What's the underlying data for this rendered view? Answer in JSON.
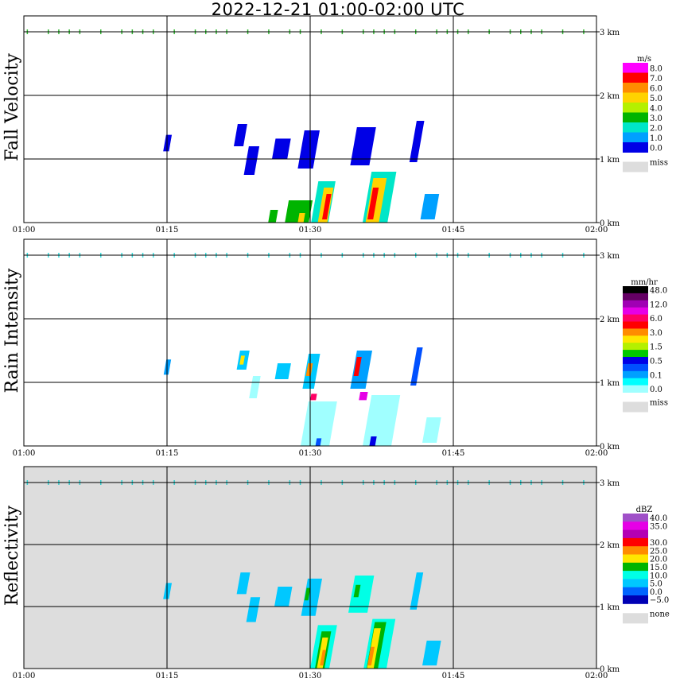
{
  "title": "2022-12-21   01:00-02:00 UTC",
  "chart_data": [
    {
      "type": "heatmap",
      "ylabel": "Fall Velocity",
      "x_ticks": [
        "01:00",
        "01:15",
        "01:30",
        "01:45",
        "02:00"
      ],
      "y_ticks": [
        "0 km",
        "1 km",
        "2 km",
        "3 km"
      ],
      "xlim": [
        0,
        60
      ],
      "ylim": [
        0,
        3
      ],
      "grid": true,
      "legend": {
        "placement": "right",
        "unit": "m/s",
        "levels": [
          {
            "label": "8.0",
            "color": "#ff00ff"
          },
          {
            "label": "7.0",
            "color": "#ff0000"
          },
          {
            "label": "6.0",
            "color": "#ff8c00"
          },
          {
            "label": "5.0",
            "color": "#ffd200"
          },
          {
            "label": "4.0",
            "color": "#b4f000"
          },
          {
            "label": "3.0",
            "color": "#00b400"
          },
          {
            "label": "2.0",
            "color": "#00e6c8"
          },
          {
            "label": "1.0",
            "color": "#00a0ff"
          },
          {
            "label": "0.0",
            "color": "#0000e6"
          }
        ],
        "miss_label": "miss",
        "miss_color": "#dddddd"
      },
      "background": "#ffffff",
      "echoes": [
        {
          "t": 14.9,
          "z0": 1.12,
          "z1": 1.38,
          "w": 0.6,
          "color": "#0000e6"
        },
        {
          "t": 22.5,
          "z0": 1.2,
          "z1": 1.55,
          "w": 1.0,
          "color": "#0000e6"
        },
        {
          "t": 23.6,
          "z0": 0.75,
          "z1": 1.2,
          "w": 1.1,
          "color": "#0000e6"
        },
        {
          "t": 26.8,
          "z0": 1.0,
          "z1": 1.32,
          "w": 1.6,
          "color": "#0000e6"
        },
        {
          "t": 29.5,
          "z0": 0.85,
          "z1": 1.45,
          "w": 1.6,
          "color": "#0000e6"
        },
        {
          "t": 35.2,
          "z0": 0.9,
          "z1": 1.5,
          "w": 2.0,
          "color": "#0000e6"
        },
        {
          "t": 40.8,
          "z0": 0.95,
          "z1": 1.6,
          "w": 0.8,
          "color": "#0000e6"
        },
        {
          "t": 42.3,
          "z0": 0.05,
          "z1": 0.45,
          "w": 1.5,
          "color": "#00a0ff"
        },
        {
          "t": 31.0,
          "z0": 0.0,
          "z1": 0.65,
          "w": 1.8,
          "color": "#00e6c8"
        },
        {
          "t": 36.8,
          "z0": 0.0,
          "z1": 0.8,
          "w": 2.6,
          "color": "#00e6c8"
        },
        {
          "t": 28.6,
          "z0": 0.0,
          "z1": 0.35,
          "w": 2.5,
          "color": "#00b400"
        },
        {
          "t": 26.0,
          "z0": 0.0,
          "z1": 0.2,
          "w": 0.8,
          "color": "#00b400"
        },
        {
          "t": 31.3,
          "z0": 0.0,
          "z1": 0.55,
          "w": 1.0,
          "color": "#ffd200"
        },
        {
          "t": 36.5,
          "z0": 0.0,
          "z1": 0.7,
          "w": 1.4,
          "color": "#ffd200"
        },
        {
          "t": 31.5,
          "z0": 0.05,
          "z1": 0.45,
          "w": 0.5,
          "color": "#ff0000"
        },
        {
          "t": 36.3,
          "z0": 0.05,
          "z1": 0.55,
          "w": 0.6,
          "color": "#ff0000"
        },
        {
          "t": 29.0,
          "z0": 0.0,
          "z1": 0.15,
          "w": 0.6,
          "color": "#ffd200"
        }
      ],
      "clutter_top": {
        "z": 3.0,
        "color": "#33bb33"
      }
    },
    {
      "type": "heatmap",
      "ylabel": "Rain Intensity",
      "x_ticks": [
        "01:00",
        "01:15",
        "01:30",
        "01:45",
        "02:00"
      ],
      "y_ticks": [
        "0 km",
        "1 km",
        "2 km",
        "3 km"
      ],
      "xlim": [
        0,
        60
      ],
      "ylim": [
        0,
        3
      ],
      "grid": true,
      "legend": {
        "placement": "right",
        "unit": "mm/hr",
        "levels": [
          {
            "label": "48.0",
            "color": "#000000"
          },
          {
            "label": "",
            "color": "#640064"
          },
          {
            "label": "12.0",
            "color": "#a000b4"
          },
          {
            "label": "",
            "color": "#e600e6"
          },
          {
            "label": "6.0",
            "color": "#ff0064"
          },
          {
            "label": "",
            "color": "#ff0000"
          },
          {
            "label": "3.0",
            "color": "#ff8c00"
          },
          {
            "label": "",
            "color": "#ffe600"
          },
          {
            "label": "1.5",
            "color": "#b4f000"
          },
          {
            "label": "",
            "color": "#00c800"
          },
          {
            "label": "0.5",
            "color": "#0000e6"
          },
          {
            "label": "",
            "color": "#0050ff"
          },
          {
            "label": "0.1",
            "color": "#00a0ff"
          },
          {
            "label": "",
            "color": "#00ffff"
          },
          {
            "label": "0.0",
            "color": "#a0ffff"
          }
        ],
        "miss_label": "miss",
        "miss_color": "#dddddd"
      },
      "background": "#ffffff",
      "echoes": [
        {
          "t": 14.9,
          "z0": 1.12,
          "z1": 1.36,
          "w": 0.5,
          "color": "#00a0ff"
        },
        {
          "t": 22.8,
          "z0": 1.2,
          "z1": 1.5,
          "w": 1.0,
          "color": "#00c8ff"
        },
        {
          "t": 24.0,
          "z0": 0.75,
          "z1": 1.1,
          "w": 0.8,
          "color": "#a0ffff"
        },
        {
          "t": 27.0,
          "z0": 1.05,
          "z1": 1.3,
          "w": 1.4,
          "color": "#00c8ff"
        },
        {
          "t": 29.8,
          "z0": 0.9,
          "z1": 1.45,
          "w": 1.2,
          "color": "#00c8ff"
        },
        {
          "t": 35.0,
          "z0": 0.9,
          "z1": 1.5,
          "w": 1.6,
          "color": "#00a0ff"
        },
        {
          "t": 40.8,
          "z0": 0.95,
          "z1": 1.55,
          "w": 0.6,
          "color": "#0050ff"
        },
        {
          "t": 30.5,
          "z0": 0.0,
          "z1": 0.7,
          "w": 3.0,
          "color": "#a0ffff"
        },
        {
          "t": 37.0,
          "z0": 0.0,
          "z1": 0.8,
          "w": 3.0,
          "color": "#a0ffff"
        },
        {
          "t": 42.5,
          "z0": 0.05,
          "z1": 0.45,
          "w": 1.5,
          "color": "#a0ffff"
        },
        {
          "t": 22.8,
          "z0": 1.28,
          "z1": 1.42,
          "w": 0.4,
          "color": "#ffe600"
        },
        {
          "t": 29.8,
          "z0": 1.1,
          "z1": 1.3,
          "w": 0.5,
          "color": "#ff8c00"
        },
        {
          "t": 34.8,
          "z0": 1.1,
          "z1": 1.4,
          "w": 0.5,
          "color": "#ff0000"
        },
        {
          "t": 30.3,
          "z0": 0.72,
          "z1": 0.82,
          "w": 0.6,
          "color": "#ff0064"
        },
        {
          "t": 35.5,
          "z0": 0.72,
          "z1": 0.85,
          "w": 0.8,
          "color": "#e600e6"
        },
        {
          "t": 36.5,
          "z0": 0.0,
          "z1": 0.15,
          "w": 0.6,
          "color": "#0000e6"
        },
        {
          "t": 30.8,
          "z0": 0.0,
          "z1": 0.12,
          "w": 0.5,
          "color": "#0050ff"
        }
      ],
      "clutter_top": {
        "z": 3.0,
        "color": "#33dddd"
      }
    },
    {
      "type": "heatmap",
      "ylabel": "Reflectivity",
      "x_ticks": [
        "01:00",
        "01:15",
        "01:30",
        "01:45",
        "02:00"
      ],
      "y_ticks": [
        "0 km",
        "1 km",
        "2 km",
        "3 km"
      ],
      "xlim": [
        0,
        60
      ],
      "ylim": [
        0,
        3
      ],
      "grid": true,
      "legend": {
        "placement": "right",
        "unit": "dBZ",
        "levels": [
          {
            "label": "40.0",
            "color": "#a050c8"
          },
          {
            "label": "35.0",
            "color": "#e600e6"
          },
          {
            "label": "",
            "color": "#b400b4"
          },
          {
            "label": "30.0",
            "color": "#ff0000"
          },
          {
            "label": "25.0",
            "color": "#ff8c00"
          },
          {
            "label": "20.0",
            "color": "#ffe600"
          },
          {
            "label": "15.0",
            "color": "#00b400"
          },
          {
            "label": "10.0",
            "color": "#00ffe6"
          },
          {
            "label": "5.0",
            "color": "#00c8ff"
          },
          {
            "label": "0.0",
            "color": "#0064ff"
          },
          {
            "label": "−5.0",
            "color": "#0000b4"
          }
        ],
        "miss_label": "none",
        "miss_color": "#dddddd"
      },
      "background": "#dddddd",
      "echoes": [
        {
          "t": 14.9,
          "z0": 1.12,
          "z1": 1.38,
          "w": 0.6,
          "color": "#00c8ff"
        },
        {
          "t": 22.8,
          "z0": 1.2,
          "z1": 1.55,
          "w": 1.0,
          "color": "#00c8ff"
        },
        {
          "t": 23.8,
          "z0": 0.75,
          "z1": 1.15,
          "w": 1.0,
          "color": "#00c8ff"
        },
        {
          "t": 27.0,
          "z0": 1.0,
          "z1": 1.32,
          "w": 1.5,
          "color": "#00c8ff"
        },
        {
          "t": 29.8,
          "z0": 0.85,
          "z1": 1.45,
          "w": 1.5,
          "color": "#00c8ff"
        },
        {
          "t": 35.0,
          "z0": 0.9,
          "z1": 1.5,
          "w": 2.0,
          "color": "#00ffe6"
        },
        {
          "t": 40.8,
          "z0": 0.95,
          "z1": 1.55,
          "w": 0.7,
          "color": "#00c8ff"
        },
        {
          "t": 31.0,
          "z0": 0.0,
          "z1": 0.7,
          "w": 2.0,
          "color": "#00ffe6"
        },
        {
          "t": 36.8,
          "z0": 0.0,
          "z1": 0.8,
          "w": 2.4,
          "color": "#00ffe6"
        },
        {
          "t": 42.5,
          "z0": 0.05,
          "z1": 0.45,
          "w": 1.5,
          "color": "#00c8ff"
        },
        {
          "t": 31.0,
          "z0": 0.0,
          "z1": 0.6,
          "w": 1.0,
          "color": "#00b400"
        },
        {
          "t": 36.5,
          "z0": 0.0,
          "z1": 0.75,
          "w": 1.2,
          "color": "#00b400"
        },
        {
          "t": 31.0,
          "z0": 0.0,
          "z1": 0.5,
          "w": 0.6,
          "color": "#ffe600"
        },
        {
          "t": 36.3,
          "z0": 0.0,
          "z1": 0.65,
          "w": 0.7,
          "color": "#ffe600"
        },
        {
          "t": 31.2,
          "z0": 0.05,
          "z1": 0.3,
          "w": 0.35,
          "color": "#ff8c00"
        },
        {
          "t": 36.2,
          "z0": 0.05,
          "z1": 0.35,
          "w": 0.4,
          "color": "#ff8c00"
        },
        {
          "t": 29.6,
          "z0": 1.1,
          "z1": 1.3,
          "w": 0.4,
          "color": "#00b400"
        },
        {
          "t": 34.8,
          "z0": 1.15,
          "z1": 1.35,
          "w": 0.5,
          "color": "#00b400"
        }
      ],
      "clutter_top": {
        "z": 3.0,
        "color": "#33cccc"
      }
    }
  ]
}
